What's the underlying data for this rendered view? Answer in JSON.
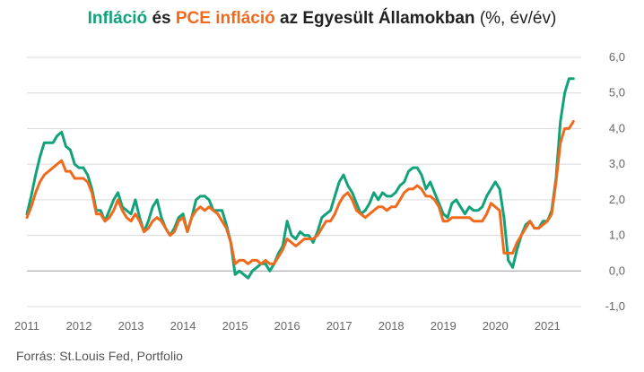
{
  "title": {
    "series1_name": "Infláció",
    "connector": "és",
    "series2_name": "PCE infláció",
    "rest": "az Egyesült Államokban",
    "unit": "(%, év/év)"
  },
  "source": "Forrás: St.Louis Fed, Portfolio",
  "colors": {
    "series1": "#12a27a",
    "series2": "#f06a1d",
    "grid": "#d9d9d9",
    "zero": "#9a9a9a"
  },
  "chart_data": {
    "type": "line",
    "xlim": [
      2011.0,
      2021.65
    ],
    "ylim": [
      -1.0,
      6.0
    ],
    "x_ticks": [
      {
        "value": 2011,
        "label": "2011"
      },
      {
        "value": 2012,
        "label": "2012"
      },
      {
        "value": 2013,
        "label": "2013"
      },
      {
        "value": 2014,
        "label": "2014"
      },
      {
        "value": 2015,
        "label": "2015"
      },
      {
        "value": 2016,
        "label": "2016"
      },
      {
        "value": 2017,
        "label": "2017"
      },
      {
        "value": 2018,
        "label": "2018"
      },
      {
        "value": 2019,
        "label": "2019"
      },
      {
        "value": 2020,
        "label": "2020"
      },
      {
        "value": 2021,
        "label": "2021"
      }
    ],
    "y_ticks": [
      {
        "value": 6,
        "label": "6,0"
      },
      {
        "value": 5,
        "label": "5,0"
      },
      {
        "value": 4,
        "label": "4,0"
      },
      {
        "value": 3,
        "label": "3,0"
      },
      {
        "value": 2,
        "label": "2,0"
      },
      {
        "value": 1,
        "label": "1,0"
      },
      {
        "value": 0,
        "label": "0,0"
      },
      {
        "value": -1,
        "label": "-1,0"
      }
    ],
    "grid": true,
    "x_start": 2011.0,
    "x_step": 0.08333,
    "series": [
      {
        "name": "Infláció",
        "color": "#12a27a",
        "values": [
          1.6,
          2.1,
          2.7,
          3.2,
          3.6,
          3.6,
          3.6,
          3.8,
          3.9,
          3.5,
          3.4,
          3.0,
          2.9,
          2.9,
          2.7,
          2.3,
          1.7,
          1.7,
          1.4,
          1.7,
          2.0,
          2.2,
          1.8,
          1.7,
          1.6,
          2.0,
          1.5,
          1.1,
          1.4,
          1.8,
          2.0,
          1.5,
          1.2,
          1.0,
          1.2,
          1.5,
          1.6,
          1.1,
          1.5,
          2.0,
          2.1,
          2.1,
          2.0,
          1.7,
          1.7,
          1.7,
          1.3,
          0.8,
          -0.1,
          0.0,
          -0.1,
          -0.2,
          0.0,
          0.1,
          0.2,
          0.2,
          0.0,
          0.2,
          0.5,
          0.7,
          1.4,
          1.0,
          0.9,
          1.1,
          1.0,
          1.0,
          0.8,
          1.1,
          1.5,
          1.6,
          1.7,
          2.1,
          2.5,
          2.7,
          2.4,
          2.2,
          1.9,
          1.6,
          1.7,
          1.9,
          2.2,
          2.0,
          2.2,
          2.1,
          2.1,
          2.2,
          2.4,
          2.5,
          2.8,
          2.9,
          2.9,
          2.7,
          2.3,
          2.5,
          2.2,
          1.9,
          1.6,
          1.5,
          1.9,
          2.0,
          1.8,
          1.6,
          1.8,
          1.7,
          1.7,
          1.8,
          2.1,
          2.3,
          2.5,
          2.3,
          1.5,
          0.3,
          0.1,
          0.6,
          1.0,
          1.3,
          1.4,
          1.2,
          1.2,
          1.4,
          1.4,
          1.7,
          2.6,
          4.2,
          5.0,
          5.4,
          5.4
        ]
      },
      {
        "name": "PCE infláció",
        "color": "#f06a1d",
        "values": [
          1.5,
          1.8,
          2.2,
          2.5,
          2.7,
          2.8,
          2.9,
          3.0,
          3.1,
          2.8,
          2.8,
          2.6,
          2.6,
          2.6,
          2.5,
          2.2,
          1.6,
          1.6,
          1.4,
          1.5,
          1.7,
          2.0,
          1.7,
          1.5,
          1.4,
          1.6,
          1.4,
          1.1,
          1.2,
          1.4,
          1.5,
          1.4,
          1.2,
          1.0,
          1.1,
          1.4,
          1.5,
          1.1,
          1.5,
          1.7,
          1.8,
          1.7,
          1.8,
          1.7,
          1.6,
          1.4,
          1.2,
          0.8,
          0.2,
          0.3,
          0.3,
          0.2,
          0.3,
          0.3,
          0.2,
          0.3,
          0.2,
          0.2,
          0.4,
          0.6,
          0.9,
          0.8,
          0.7,
          0.8,
          0.9,
          0.9,
          0.9,
          1.0,
          1.2,
          1.4,
          1.4,
          1.6,
          1.9,
          2.1,
          2.2,
          2.0,
          1.7,
          1.6,
          1.5,
          1.6,
          1.7,
          1.8,
          1.8,
          1.7,
          1.8,
          1.8,
          2.0,
          2.2,
          2.3,
          2.3,
          2.4,
          2.3,
          2.1,
          2.1,
          2.0,
          1.8,
          1.4,
          1.4,
          1.5,
          1.5,
          1.5,
          1.5,
          1.5,
          1.4,
          1.4,
          1.4,
          1.6,
          1.9,
          1.8,
          1.7,
          0.5,
          0.5,
          0.5,
          0.8,
          1.0,
          1.2,
          1.4,
          1.2,
          1.2,
          1.3,
          1.4,
          1.6,
          2.5,
          3.6,
          4.0,
          4.0,
          4.2
        ]
      }
    ]
  }
}
